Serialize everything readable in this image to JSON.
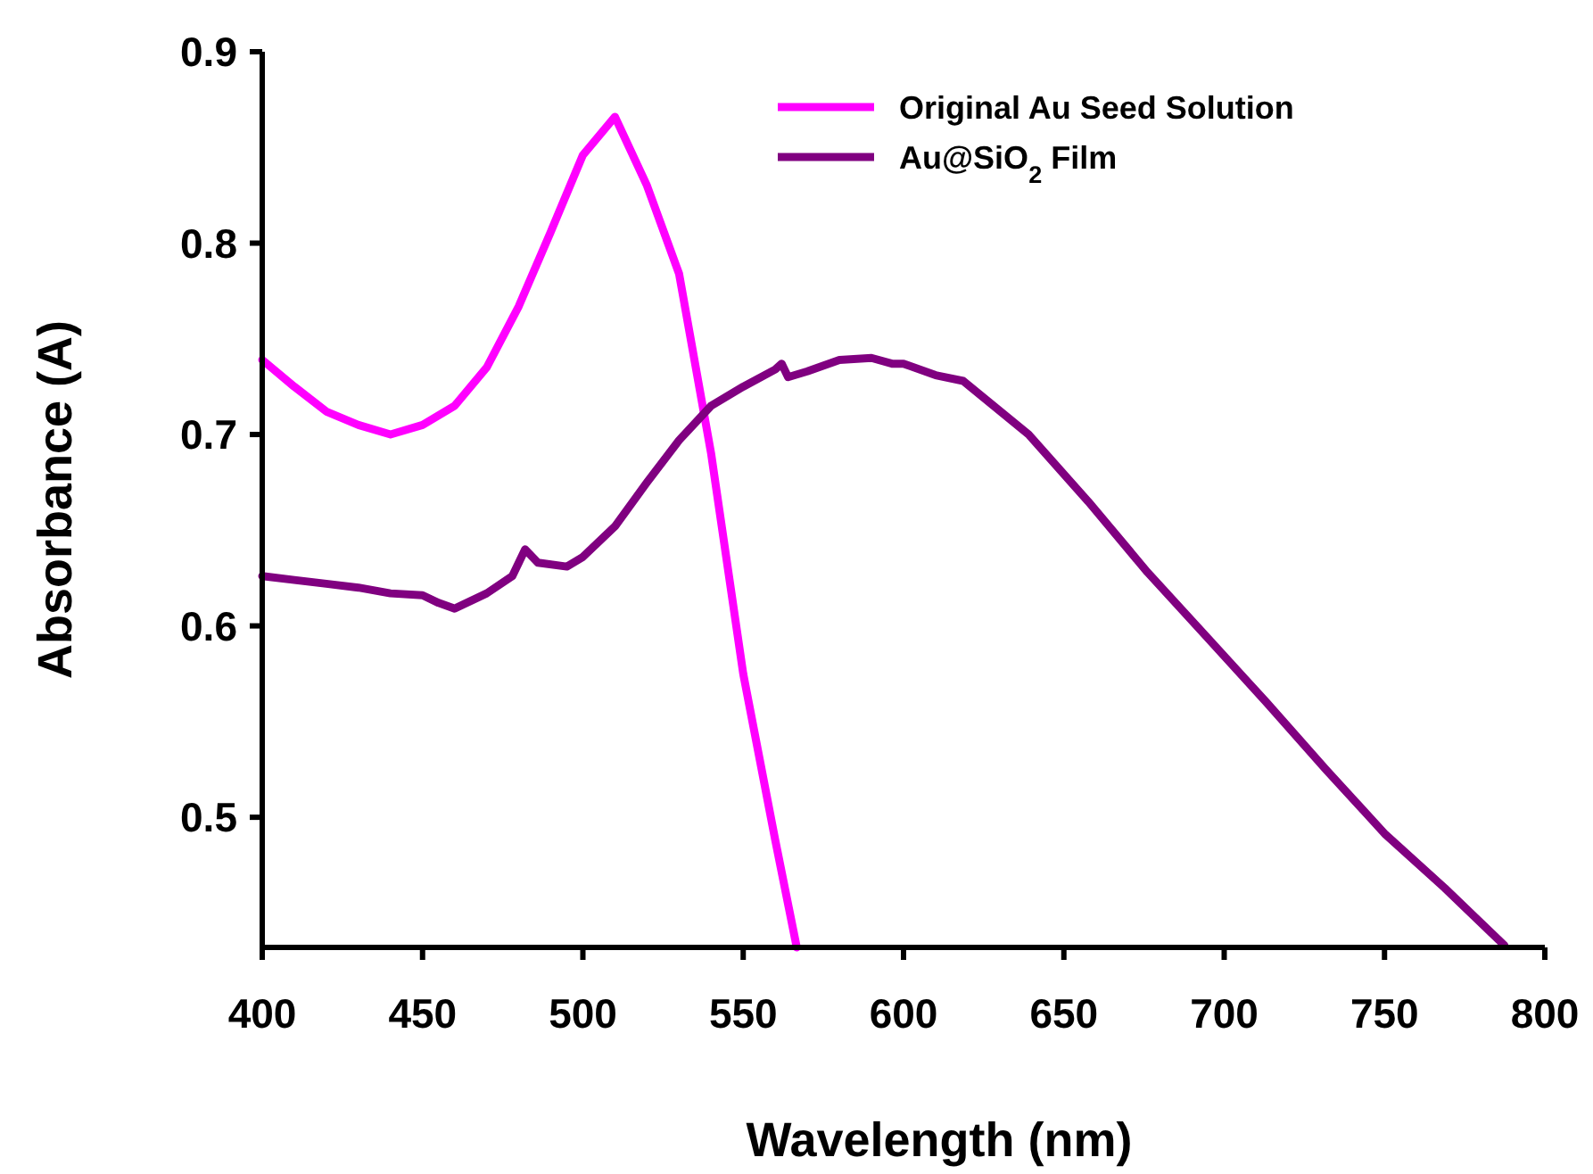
{
  "chart_data": {
    "type": "line",
    "xlabel": "Wavelength (nm)",
    "ylabel": "Absorbance (A)",
    "xlim": [
      400,
      800
    ],
    "xticks": [
      400,
      450,
      500,
      550,
      600,
      650,
      700,
      750,
      800
    ],
    "ylim": [
      0.432,
      0.9
    ],
    "yticks": [
      0.5,
      0.6,
      0.7,
      0.8,
      0.9
    ],
    "grid": false,
    "legend": "top right",
    "marker": "none",
    "line_style": "solid",
    "series": [
      {
        "name": "Original Au Seed Solution",
        "color": "#ff00ff",
        "x": [
          400,
          410,
          420,
          430,
          440,
          450,
          460,
          470,
          480,
          490,
          500,
          510,
          520,
          530,
          540,
          550,
          560,
          566.7
        ],
        "values": [
          0.739,
          0.725,
          0.712,
          0.705,
          0.7,
          0.705,
          0.715,
          0.735,
          0.767,
          0.806,
          0.846,
          0.866,
          0.83,
          0.784,
          0.69,
          0.575,
          0.488,
          0.432
        ]
      },
      {
        "name": "Au@SiO$_{2}$ Film",
        "color": "#800080",
        "x": [
          400,
          410,
          420,
          430,
          440,
          450,
          455,
          460,
          470,
          478,
          482,
          486,
          495,
          500,
          510,
          520,
          530,
          540,
          550,
          560,
          562,
          564,
          570,
          580,
          590,
          596.4,
          600,
          610,
          618.6,
          639,
          657.6,
          676.1,
          694.7,
          713.2,
          731.7,
          750.3,
          768.8,
          787.4
        ],
        "values": [
          0.626,
          0.624,
          0.622,
          0.62,
          0.617,
          0.616,
          0.612,
          0.609,
          0.617,
          0.626,
          0.64,
          0.633,
          0.631,
          0.636,
          0.652,
          0.675,
          0.697,
          0.715,
          0.725,
          0.734,
          0.737,
          0.73,
          0.733,
          0.739,
          0.74,
          0.737,
          0.737,
          0.731,
          0.728,
          0.7,
          0.665,
          0.628,
          0.594,
          0.56,
          0.525,
          0.491,
          0.463,
          0.433
        ]
      }
    ]
  }
}
